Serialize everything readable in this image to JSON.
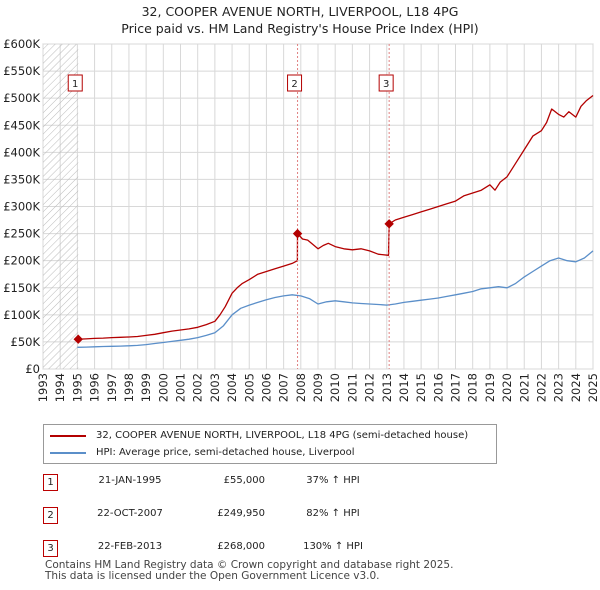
{
  "title_line1": "32, COOPER AVENUE NORTH, LIVERPOOL, L18 4PG",
  "title_line2": "Price paid vs. HM Land Registry's House Price Index (HPI)",
  "colors": {
    "property": "#b30000",
    "hpi": "#5b8fc9",
    "marker_line": "#e08080",
    "grid": "#d8d8d8",
    "hatch": "#bbbbbb"
  },
  "legend": {
    "property_label": "32, COOPER AVENUE NORTH, LIVERPOOL, L18 4PG (semi-detached house)",
    "hpi_label": "HPI: Average price, semi-detached house, Liverpool"
  },
  "sales": [
    {
      "marker": "1",
      "date": "21-JAN-1995",
      "price": "£55,000",
      "hpi_change": "37% ↑ HPI"
    },
    {
      "marker": "2",
      "date": "22-OCT-2007",
      "price": "£249,950",
      "hpi_change": "82% ↑ HPI"
    },
    {
      "marker": "3",
      "date": "22-FEB-2013",
      "price": "£268,000",
      "hpi_change": "130% ↑ HPI"
    }
  ],
  "footer_line1": "Contains HM Land Registry data © Crown copyright and database right 2025.",
  "footer_line2": "This data is licensed under the Open Government Licence v3.0.",
  "chart_data": {
    "type": "line",
    "title": "Price paid vs. HM Land Registry's House Price Index (HPI)",
    "xlabel": "",
    "ylabel": "",
    "xlim": [
      1993,
      2025
    ],
    "ylim": [
      0,
      600000
    ],
    "y_ticks": [
      0,
      50000,
      100000,
      150000,
      200000,
      250000,
      300000,
      350000,
      400000,
      450000,
      500000,
      550000,
      600000
    ],
    "y_tick_labels": [
      "£0",
      "£50K",
      "£100K",
      "£150K",
      "£200K",
      "£250K",
      "£300K",
      "£350K",
      "£400K",
      "£450K",
      "£500K",
      "£550K",
      "£600K"
    ],
    "x_ticks": [
      1993,
      1994,
      1995,
      1996,
      1997,
      1998,
      1999,
      2000,
      2001,
      2002,
      2003,
      2004,
      2005,
      2006,
      2007,
      2008,
      2009,
      2010,
      2011,
      2012,
      2013,
      2014,
      2015,
      2016,
      2017,
      2018,
      2019,
      2020,
      2021,
      2022,
      2023,
      2024,
      2025
    ],
    "hatched_before": 1995.05,
    "sale_markers": [
      {
        "label": "1",
        "x": 1995.05,
        "y": 55000
      },
      {
        "label": "2",
        "x": 2007.81,
        "y": 249950
      },
      {
        "label": "3",
        "x": 2013.14,
        "y": 268000
      }
    ],
    "series": [
      {
        "name": "32, COOPER AVENUE NORTH, LIVERPOOL, L18 4PG (semi-detached house)",
        "x": [
          1995.05,
          1995.5,
          1996,
          1996.5,
          1997,
          1997.5,
          1998,
          1998.5,
          1999,
          1999.5,
          2000,
          2000.5,
          2001,
          2001.5,
          2002,
          2002.5,
          2003,
          2003.3,
          2003.6,
          2004,
          2004.3,
          2004.6,
          2005,
          2005.5,
          2006,
          2006.5,
          2007,
          2007.5,
          2007.8,
          2007.81,
          2008.1,
          2008.4,
          2008.7,
          2009,
          2009.3,
          2009.6,
          2010,
          2010.5,
          2011,
          2011.5,
          2012,
          2012.5,
          2013.1,
          2013.14,
          2013.5,
          2014,
          2014.5,
          2015,
          2015.5,
          2016,
          2016.5,
          2017,
          2017.5,
          2018,
          2018.5,
          2019,
          2019.3,
          2019.6,
          2020,
          2020.5,
          2021,
          2021.5,
          2022,
          2022.3,
          2022.6,
          2023,
          2023.3,
          2023.6,
          2024,
          2024.3,
          2024.6,
          2025
        ],
        "y": [
          55000,
          55500,
          56500,
          57000,
          58000,
          58500,
          59000,
          60000,
          62000,
          64000,
          67000,
          70000,
          72000,
          74000,
          77000,
          82000,
          88000,
          100000,
          115000,
          140000,
          150000,
          158000,
          165000,
          175000,
          180000,
          185000,
          190000,
          195000,
          200000,
          249950,
          240000,
          238000,
          230000,
          222000,
          228000,
          232000,
          226000,
          222000,
          220000,
          222000,
          218000,
          212000,
          210000,
          268000,
          275000,
          280000,
          285000,
          290000,
          295000,
          300000,
          305000,
          310000,
          320000,
          325000,
          330000,
          340000,
          330000,
          345000,
          355000,
          380000,
          405000,
          430000,
          440000,
          455000,
          480000,
          470000,
          465000,
          475000,
          465000,
          485000,
          495000,
          505000
        ]
      },
      {
        "name": "HPI: Average price, semi-detached house, Liverpool",
        "x": [
          1995,
          1995.5,
          1996,
          1996.5,
          1997,
          1997.5,
          1998,
          1998.5,
          1999,
          1999.5,
          2000,
          2000.5,
          2001,
          2001.5,
          2002,
          2002.5,
          2003,
          2003.5,
          2004,
          2004.5,
          2005,
          2005.5,
          2006,
          2006.5,
          2007,
          2007.5,
          2008,
          2008.5,
          2009,
          2009.5,
          2010,
          2010.5,
          2011,
          2011.5,
          2012,
          2012.5,
          2013,
          2013.5,
          2014,
          2014.5,
          2015,
          2015.5,
          2016,
          2016.5,
          2017,
          2017.5,
          2018,
          2018.5,
          2019,
          2019.5,
          2020,
          2020.5,
          2021,
          2021.5,
          2022,
          2022.5,
          2023,
          2023.5,
          2024,
          2024.5,
          2025
        ],
        "y": [
          40000,
          40500,
          41000,
          41500,
          42000,
          42300,
          42800,
          43500,
          45000,
          47000,
          49000,
          51000,
          53000,
          55000,
          58000,
          62000,
          67000,
          80000,
          100000,
          112000,
          118000,
          123000,
          128000,
          132000,
          135000,
          137000,
          135000,
          130000,
          120000,
          124000,
          126000,
          124000,
          122000,
          121000,
          120000,
          119000,
          118000,
          120000,
          123000,
          125000,
          127000,
          129000,
          131000,
          134000,
          137000,
          140000,
          143000,
          148000,
          150000,
          152000,
          150000,
          158000,
          170000,
          180000,
          190000,
          200000,
          205000,
          200000,
          198000,
          205000,
          218000
        ]
      }
    ]
  }
}
